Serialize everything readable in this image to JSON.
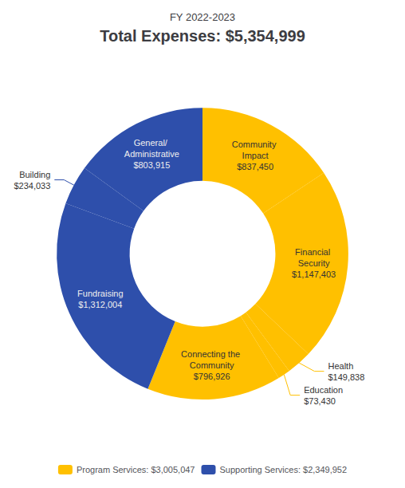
{
  "chart_data": {
    "type": "donut",
    "title": "Total Expenses: $5,354,999",
    "subtitle": "FY 2022-2023",
    "series": [
      {
        "name": "Program Services: $3,005,047",
        "color": "#FFC000",
        "categories": [
          "Community Impact",
          "Financial Security",
          "Health",
          "Education",
          "Connecting the Community"
        ],
        "values": [
          837450,
          1147403,
          149838,
          73430,
          796926
        ],
        "value_labels": [
          "$837,450",
          "$1,147,403",
          "$149,838",
          "$73,430",
          "$796,926"
        ]
      },
      {
        "name": "Supporting Services: $2,349,952",
        "color": "#2E4FAB",
        "categories": [
          "Fundraising",
          "Building",
          "General/ Administrative"
        ],
        "values": [
          1312004,
          234033,
          803915
        ],
        "value_labels": [
          "$1,312,004",
          "$234,033",
          "$803,915"
        ]
      }
    ],
    "data_labels": true,
    "legend": "bottom"
  }
}
